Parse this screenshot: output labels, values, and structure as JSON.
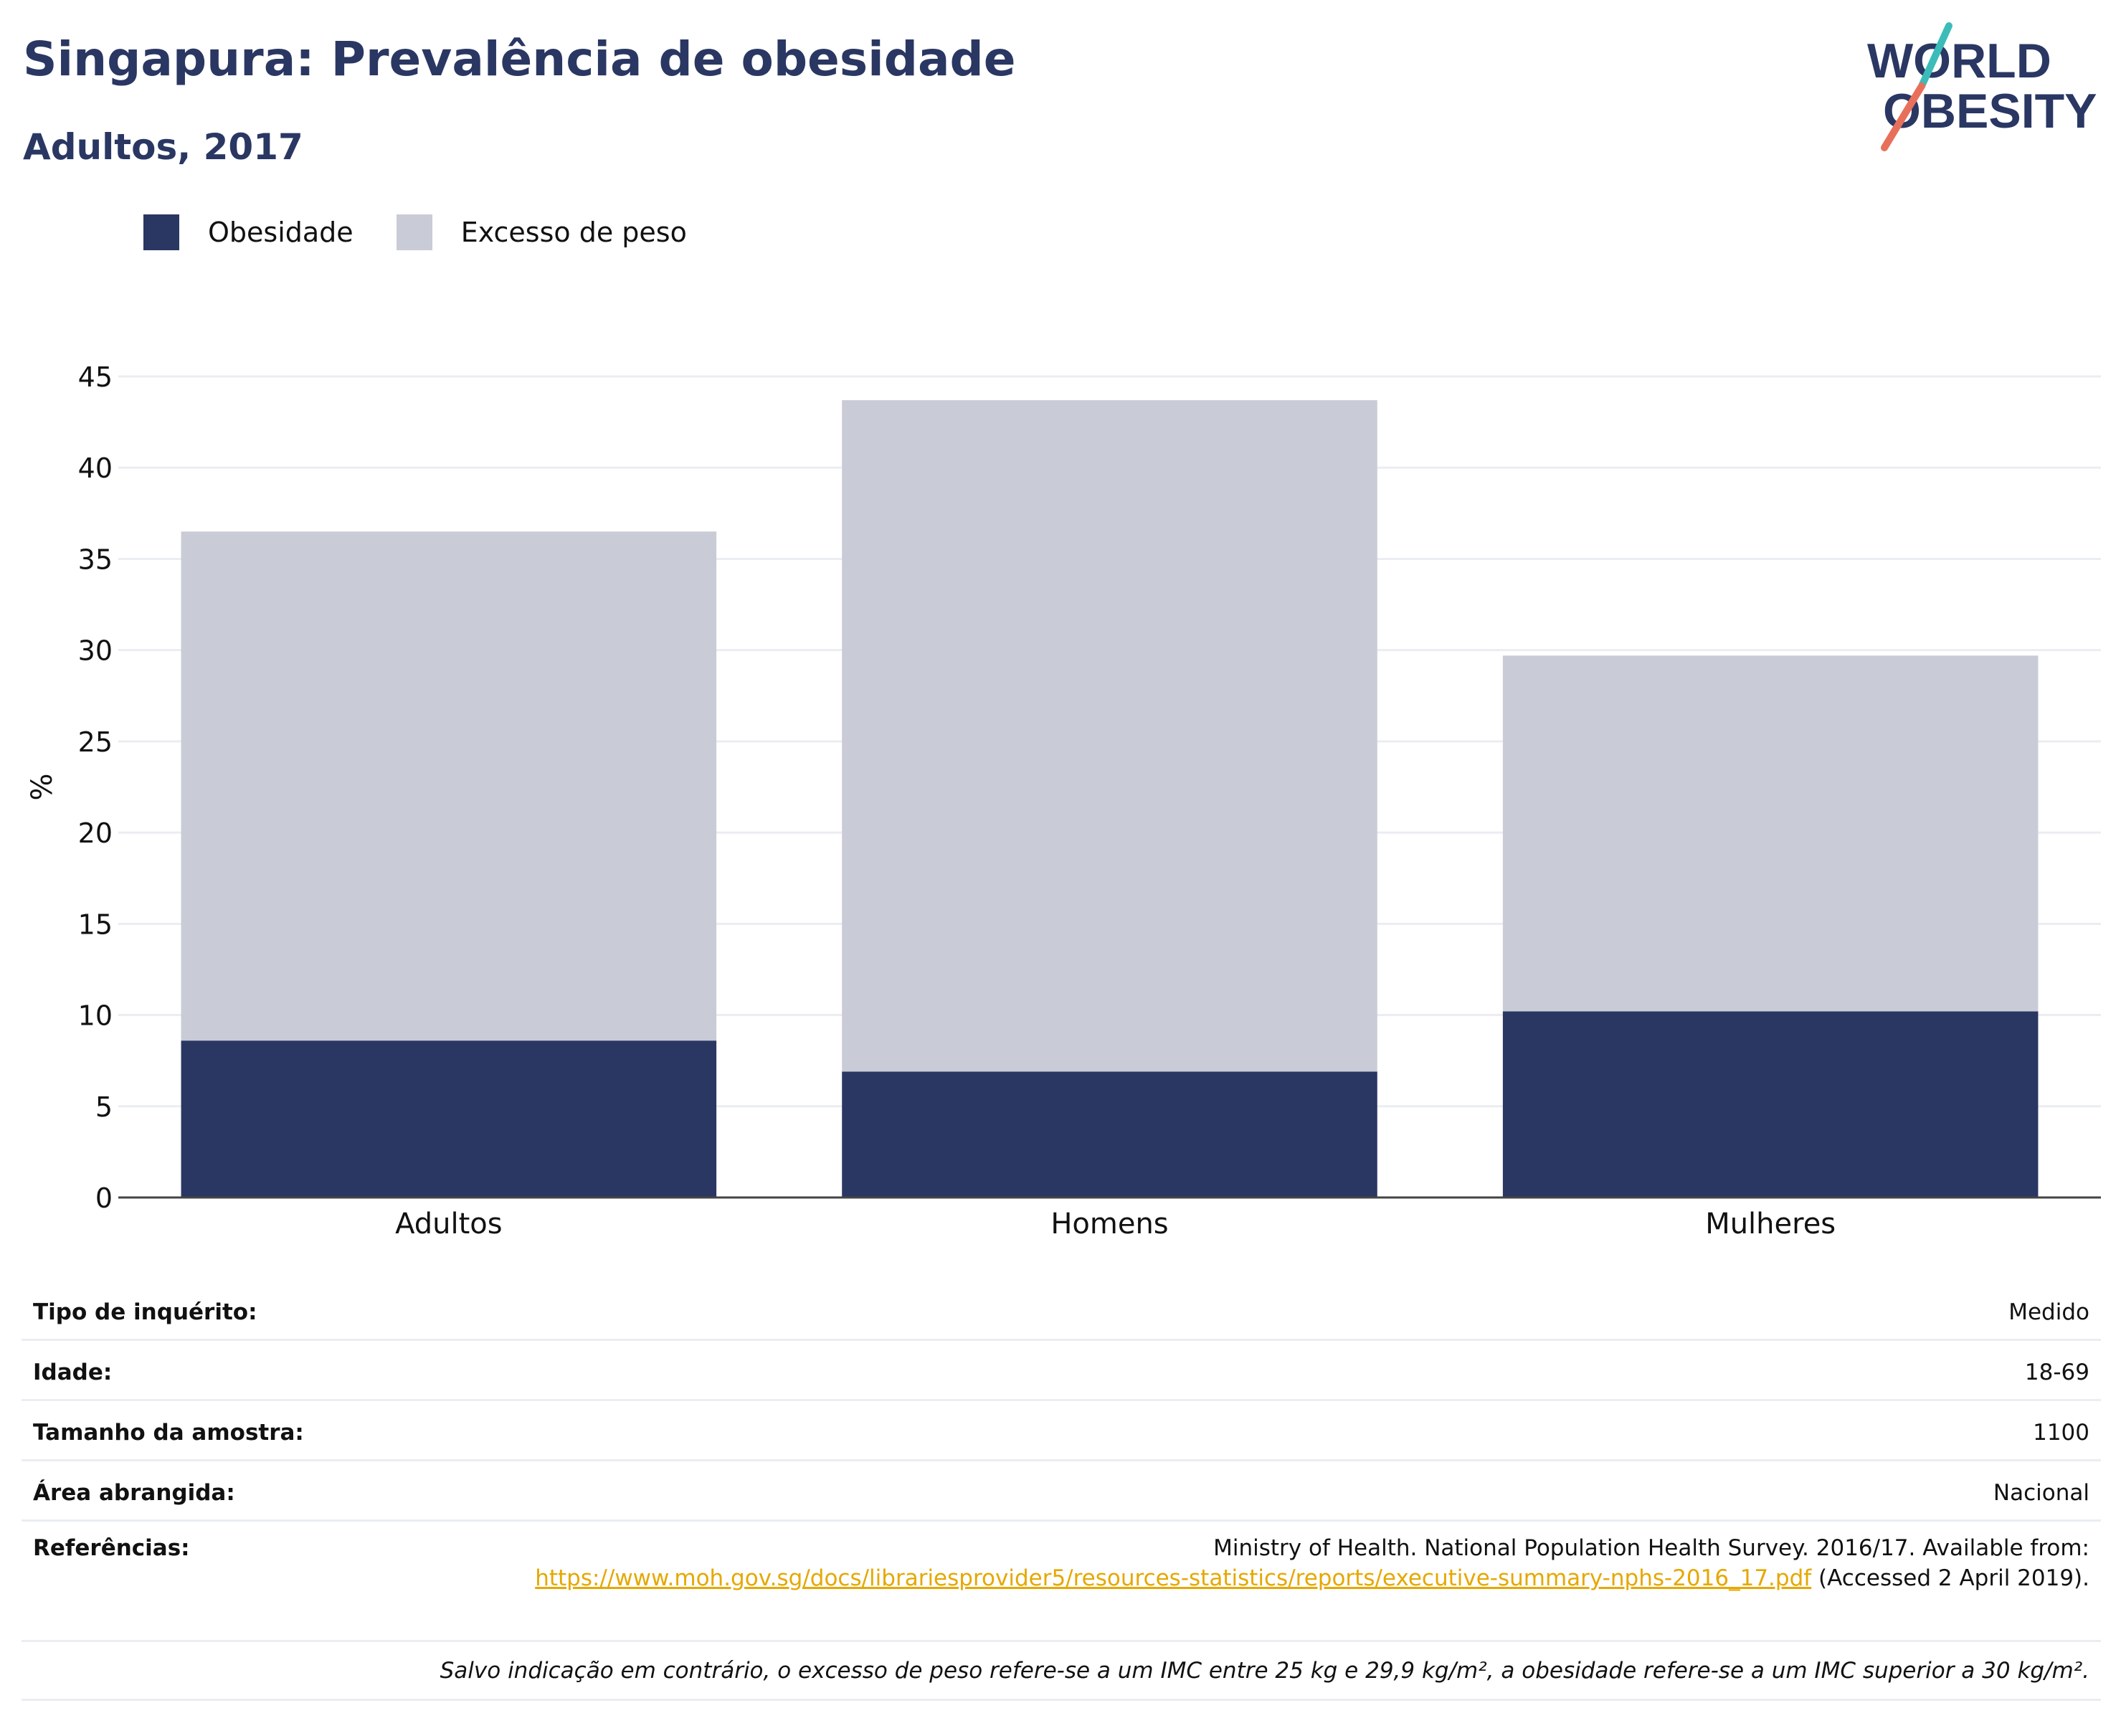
{
  "header": {
    "title": "Singapura: Prevalência de obesidade",
    "subtitle": "Adultos, 2017"
  },
  "logo": {
    "line1": "WORLD",
    "line2": "OBESITY",
    "name": "world-obesity-logo"
  },
  "colors": {
    "obesity": "#2a3763",
    "overweight": "#c9cbd6",
    "accent_teal": "#3bbcb8",
    "accent_red": "#e8705a",
    "link": "#e5a800"
  },
  "chart_data": {
    "type": "bar",
    "stacked": true,
    "title": "Singapura: Prevalência de obesidade",
    "subtitle": "Adultos, 2017",
    "categories": [
      "Adultos",
      "Homens",
      "Mulheres"
    ],
    "series": [
      {
        "name": "Obesidade",
        "values": [
          8.6,
          6.9,
          10.2
        ],
        "color": "#2a3763"
      },
      {
        "name": "Excesso de peso",
        "values": [
          27.9,
          36.8,
          19.5
        ],
        "color": "#c9cbd6"
      }
    ],
    "xlabel": "",
    "ylabel": "%",
    "ylim": [
      0,
      45
    ],
    "yticks": [
      0,
      5,
      10,
      15,
      20,
      25,
      30,
      35,
      40,
      45
    ],
    "grid": true,
    "legend": "top-left"
  },
  "info": {
    "rows": [
      {
        "label": "Tipo de inquérito:",
        "value": "Medido"
      },
      {
        "label": "Idade:",
        "value": "18-69"
      },
      {
        "label": "Tamanho da amostra:",
        "value": "1100"
      },
      {
        "label": "Área abrangida:",
        "value": "Nacional"
      }
    ],
    "references": {
      "label": "Referências:",
      "text_before": "Ministry of Health. National Population Health Survey. 2016/17. Available from:",
      "link": "https://www.moh.gov.sg/docs/librariesprovider5/resources-statistics/reports/executive-summary-nphs-2016_17.pdf",
      "text_after": "(Accessed 2 April 2019)."
    },
    "note": "Salvo indicação em contrário, o excesso de peso refere-se a um IMC entre 25 kg e 29,9 kg/m², a obesidade refere-se a um IMC superior a 30 kg/m²."
  }
}
